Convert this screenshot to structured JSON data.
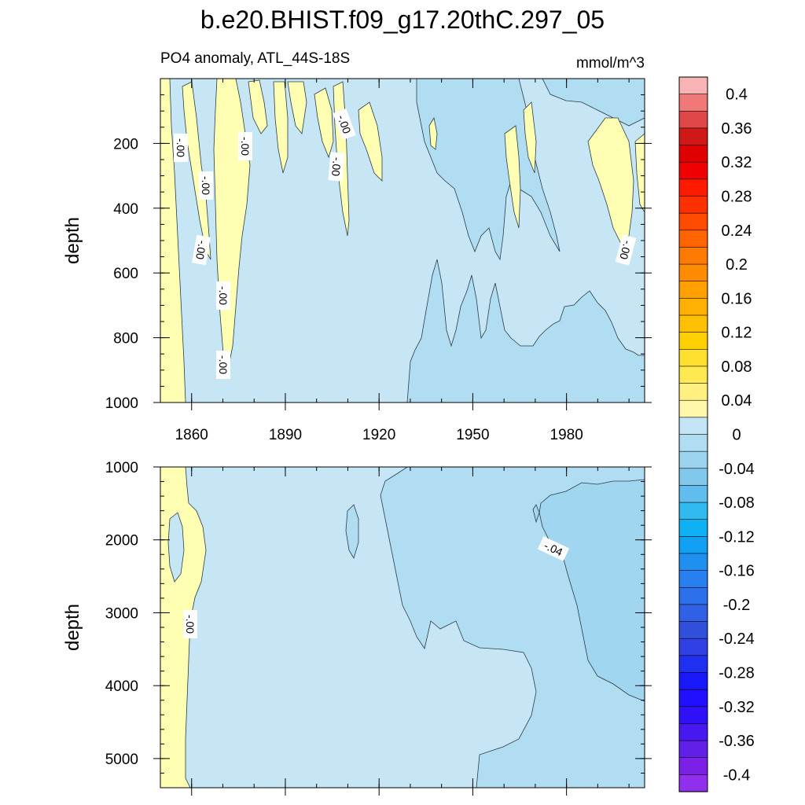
{
  "chart_data": {
    "type": "heatmap",
    "title": "b.e20.BHIST.f09_g17.20thC.297_05",
    "subtitle_left": "PO4 anomaly, ATL_44S-18S",
    "subtitle_right": "mmol/m^3",
    "xlim": [
      1850,
      2005
    ],
    "x_ticks": [
      1860,
      1890,
      1920,
      1950,
      1980
    ],
    "x_tick_labels": [
      "1860",
      "1890",
      "1920",
      "1950",
      "1980"
    ],
    "top_panel": {
      "ylabel": "depth",
      "ylim": [
        0,
        1000
      ],
      "y_ticks": [
        200,
        400,
        600,
        800,
        1000
      ],
      "y_tick_labels": [
        "200",
        "400",
        "600",
        "800",
        "1000"
      ],
      "contour_labels": [
        "-.00",
        "-.00",
        "-.00",
        "-.00",
        "-.00",
        "-.00",
        "-.00",
        "-.00",
        "-.00"
      ]
    },
    "bottom_panel": {
      "ylabel": "depth",
      "ylim": [
        1000,
        5400
      ],
      "y_ticks": [
        1000,
        2000,
        3000,
        4000,
        5000
      ],
      "y_tick_labels": [
        "1000",
        "2000",
        "3000",
        "4000",
        "5000"
      ],
      "contour_labels": [
        "-.04",
        "-.00"
      ]
    },
    "colorbar": {
      "min": -0.42,
      "max": 0.42,
      "step": 0.02,
      "tick_values": [
        0.4,
        0.36,
        0.32,
        0.28,
        0.24,
        0.2,
        0.16,
        0.12,
        0.08,
        0.04,
        0,
        -0.04,
        -0.08,
        -0.12,
        -0.16,
        -0.2,
        -0.24,
        -0.28,
        -0.32,
        -0.36,
        -0.4
      ],
      "tick_labels": [
        "0.4",
        "0.36",
        "0.32",
        "0.28",
        "0.24",
        "0.2",
        "0.16",
        "0.12",
        "0.08",
        "0.04",
        "0",
        "-0.04",
        "-0.08",
        "-0.12",
        "-0.16",
        "-0.2",
        "-0.24",
        "-0.28",
        "-0.32",
        "-0.36",
        "-0.4"
      ],
      "colors_top_to_bottom": [
        "#f8b4b4",
        "#f07878",
        "#e04848",
        "#d01818",
        "#e00000",
        "#f00000",
        "#ff1a00",
        "#ff3000",
        "#ff4a00",
        "#ff6400",
        "#ff7a00",
        "#ff8c00",
        "#ffa000",
        "#ffb000",
        "#ffc000",
        "#ffd000",
        "#ffe030",
        "#ffe850",
        "#fff080",
        "#fff8aa",
        "#c2e4f4",
        "#b0ddf2",
        "#9cd3ee",
        "#80c8ec",
        "#60bdee",
        "#30baf0",
        "#10b0f4",
        "#10a0f4",
        "#2090f0",
        "#2880f0",
        "#2c70ec",
        "#3060e4",
        "#3050dc",
        "#3040e4",
        "#2030f0",
        "#1818f8",
        "#2010ff",
        "#3010f8",
        "#4818f0",
        "#6020e8",
        "#7c20e8",
        "#9030ec"
      ]
    },
    "fill_colors": {
      "positive_small": "#ffffb4",
      "neg_0_02": "#c6e6f6",
      "neg_0_04": "#b0ddf2",
      "neg_0_06": "#a0d6f0"
    }
  }
}
